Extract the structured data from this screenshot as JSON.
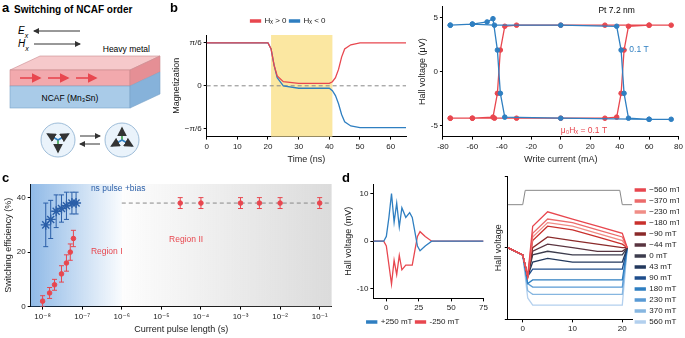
{
  "diagram": {
    "panel": "a",
    "title": "Switching of NCAF order",
    "electric_field": {
      "symbol": "E",
      "subscript": "x"
    },
    "magnetic_field": {
      "symbol": "H",
      "subscript": "x"
    },
    "layers": [
      "Heavy metal",
      "NCAF (Mn₃Sn)"
    ]
  },
  "chart_data": [
    {
      "panel": "b",
      "type": "line",
      "x_label": "Time (ns)",
      "y_label": "Magnetization",
      "x": [
        0,
        10,
        20,
        21,
        22,
        23,
        25,
        30,
        40,
        41,
        42,
        43,
        44,
        45,
        47,
        50,
        55,
        60,
        65
      ],
      "series": [
        {
          "name": "Hₓ > 0",
          "color": "#e8474f",
          "values": [
            0.5236,
            0.5236,
            0.5236,
            0.45,
            0.25,
            0.12,
            0.05,
            0.03,
            0.03,
            0.05,
            0.1,
            0.2,
            0.35,
            0.45,
            0.5,
            0.5236,
            0.5236,
            0.5236,
            0.5236
          ]
        },
        {
          "name": "Hₓ < 0",
          "color": "#2f7fc1",
          "values": [
            0.5236,
            0.5236,
            0.5236,
            0.45,
            0.25,
            0.1,
            0.0,
            -0.03,
            -0.03,
            -0.06,
            -0.12,
            -0.22,
            -0.35,
            -0.44,
            -0.49,
            -0.51,
            -0.51,
            -0.51,
            -0.51
          ]
        }
      ],
      "xlim": [
        0,
        65
      ],
      "xticks": [
        0,
        10,
        20,
        30,
        40,
        50,
        60
      ],
      "ylim": [
        -0.62,
        0.62
      ],
      "yticks": [
        {
          "value": -0.5236,
          "label": "−π/6"
        },
        0,
        {
          "value": 0.5236,
          "label": "π/6"
        }
      ],
      "shaded_x": [
        21,
        41
      ],
      "reference_y": 0,
      "grid": false,
      "legend": "top"
    },
    {
      "type": "line",
      "x_label": "Write current (mA)",
      "y_label": "Hall voltage (μV)",
      "annotations": [
        "Pt 7.2 nm"
      ],
      "series": [
        {
          "name": "− 0.1 T",
          "color": "#2f7fc1",
          "marker": "circle",
          "x": [
            -75,
            -60,
            -45,
            0,
            38,
            41,
            43,
            46,
            60,
            75,
            60,
            0,
            -38,
            -41,
            -43,
            -46,
            -50,
            -60,
            -75
          ],
          "values": [
            4.3,
            4.4,
            4.3,
            4.3,
            4.2,
            2,
            -2,
            -4.3,
            -4.4,
            -4.4,
            -4.4,
            -4.3,
            -4.2,
            -2,
            2,
            4.9,
            4.6,
            4.4,
            4.3
          ]
        },
        {
          "name": "μ₀Hₓ = 0.1 T",
          "color": "#e8474f",
          "marker": "circle",
          "x": [
            -75,
            -60,
            -45,
            -30,
            0,
            30,
            38,
            41,
            43,
            46,
            60,
            75,
            60,
            30,
            0,
            -30,
            -38,
            -41,
            -43,
            -46,
            -60,
            -75
          ],
          "values": [
            -4.3,
            -4.3,
            -4.3,
            -4.3,
            -4.3,
            -4.3,
            -4.2,
            -2,
            2,
            4.2,
            4.3,
            4.3,
            4.3,
            4.3,
            4.3,
            4.3,
            4.2,
            2,
            -2,
            -4.2,
            -4.3,
            -4.3
          ]
        }
      ],
      "xlim": [
        -80,
        80
      ],
      "xticks": [
        -80,
        -60,
        -40,
        -20,
        0,
        20,
        40,
        60,
        80
      ],
      "ylim": [
        -6,
        6
      ],
      "yticks": [
        -5,
        0,
        5
      ],
      "grid": false
    },
    {
      "panel": "c",
      "type": "scatter",
      "x_label": "Current pulse length (s)",
      "y_label": "Switching efficiency (%)",
      "log": "x",
      "series": [
        {
          "name": "Region I",
          "color": "#e8474f",
          "marker": "circle",
          "x": [
            1e-08,
            1.5e-08,
            2e-08,
            3e-08,
            4e-08,
            5e-08,
            6e-08
          ],
          "values": [
            2,
            5,
            8,
            12,
            16,
            20,
            25
          ],
          "errors": [
            2,
            2,
            2,
            3,
            3,
            3,
            3
          ]
        },
        {
          "name": "ns pulse +bias",
          "color": "#2b5fa8",
          "marker": "star",
          "x": [
            1.2e-08,
            1.6e-08,
            2.2e-08,
            3e-08,
            4e-08,
            5.5e-08,
            7e-08
          ],
          "values": [
            30,
            32,
            35,
            36,
            37,
            38,
            38
          ],
          "errors": [
            8,
            7,
            6,
            5,
            5,
            4,
            4
          ]
        },
        {
          "name": "Region II",
          "color": "#e8474f",
          "marker": "circle",
          "x": [
            3e-05,
            0.0001,
            0.001,
            0.003,
            0.01,
            0.1
          ],
          "values": [
            38,
            38,
            38,
            38,
            38,
            38
          ],
          "errors": [
            2,
            2,
            2,
            2,
            2,
            2
          ]
        }
      ],
      "xlim": [
        5e-09,
        0.2
      ],
      "xticks": [
        {
          "value": 1e-08,
          "label": "10⁻⁸"
        },
        {
          "value": 1e-07,
          "label": "10⁻⁷"
        },
        {
          "value": 1e-06,
          "label": "10⁻⁶"
        },
        {
          "value": 1e-05,
          "label": "10⁻⁵"
        },
        {
          "value": 0.0001,
          "label": "10⁻⁴"
        },
        {
          "value": 0.001,
          "label": "10⁻³"
        },
        {
          "value": 0.01,
          "label": "10⁻²"
        },
        {
          "value": 0.1,
          "label": "10⁻¹"
        }
      ],
      "ylim": [
        0,
        45
      ],
      "yticks": [
        0,
        20,
        40
      ],
      "reference_y": 38,
      "region_boundary_x": 1e-06,
      "grid": false
    },
    {
      "panel": "d",
      "type": "line",
      "y_label": "Hall voltage (mV)",
      "x": [
        -10,
        -2,
        0,
        2,
        4,
        6,
        8,
        10,
        12,
        15,
        18,
        20,
        22,
        24,
        26,
        30,
        35,
        40,
        50,
        60,
        75
      ],
      "series": [
        {
          "name": "+250 mT",
          "color": "#2f7fc1",
          "values": [
            0,
            0,
            1,
            5,
            10,
            4,
            8,
            3,
            7,
            5,
            6,
            5,
            2,
            -1,
            -2,
            -1,
            0,
            0,
            0,
            0,
            0
          ]
        },
        {
          "name": "-250 mT",
          "color": "#e8474f",
          "values": [
            0,
            0,
            -1,
            -5,
            -9,
            -4,
            -7,
            -3,
            -6,
            -5,
            -5,
            -5,
            -2,
            1,
            2,
            1,
            0,
            0,
            0,
            0,
            0
          ]
        }
      ],
      "xlim": [
        -10,
        75
      ],
      "xticks": [
        0,
        25,
        50,
        75
      ],
      "ylim": [
        -12,
        12
      ],
      "yticks": [
        -10,
        0,
        10
      ],
      "grid": false,
      "legend": "bottom"
    },
    {
      "type": "line",
      "y_label": "Hall voltage",
      "x": [
        -3,
        0,
        1,
        2,
        5,
        10,
        15,
        20,
        21
      ],
      "series": [
        {
          "name": "−560 mT",
          "color": "#e8474f",
          "values": [
            0,
            -1,
            -4,
            3,
            5,
            4,
            3,
            2,
            0
          ]
        },
        {
          "name": "−370 mT",
          "color": "#ec6b6b",
          "values": [
            0,
            -1,
            -4,
            2,
            4,
            3.5,
            2.5,
            1.5,
            0
          ]
        },
        {
          "name": "−230 mT",
          "color": "#f08d87",
          "values": [
            0,
            -1,
            -4,
            1.5,
            3.5,
            3,
            2,
            1,
            0
          ]
        },
        {
          "name": "−180 mT",
          "color": "#c9302c",
          "values": [
            0,
            -1,
            -4,
            1,
            3,
            2.5,
            1.5,
            0.5,
            0
          ]
        },
        {
          "name": "−90 mT",
          "color": "#8b2a2a",
          "values": [
            0,
            -1,
            -4,
            0,
            1.5,
            1,
            0.5,
            0,
            0
          ]
        },
        {
          "name": "−44 mT",
          "color": "#5a3540",
          "values": [
            0,
            -1,
            -4,
            -0.5,
            0.5,
            0,
            -0.5,
            -0.5,
            0
          ]
        },
        {
          "name": "0 mT",
          "color": "#3d3d4d",
          "values": [
            0,
            -1,
            -4,
            -1,
            -0.5,
            -1,
            -1,
            -1,
            0
          ]
        },
        {
          "name": "43 mT",
          "color": "#23395d",
          "values": [
            0,
            -1,
            -4,
            -2,
            -1.5,
            -2,
            -2,
            -2,
            0
          ]
        },
        {
          "name": "90 mT",
          "color": "#1f4e8c",
          "values": [
            0,
            -1,
            -4,
            -3,
            -3,
            -3,
            -3,
            -3,
            0
          ]
        },
        {
          "name": "180 mT",
          "color": "#2f7fc1",
          "values": [
            0,
            -1,
            -5,
            -4.5,
            -4.5,
            -4.5,
            -4.5,
            -4.5,
            0
          ]
        },
        {
          "name": "230 mT",
          "color": "#5a9bd5",
          "values": [
            0,
            -1,
            -5,
            -5.5,
            -5.5,
            -5.5,
            -5.5,
            -5.5,
            0
          ]
        },
        {
          "name": "370 mT",
          "color": "#86b6e0",
          "values": [
            0,
            -1,
            -6,
            -6.5,
            -6.5,
            -6.5,
            -6.5,
            -6.5,
            0
          ]
        },
        {
          "name": "560 mT",
          "color": "#b3d0ee",
          "values": [
            0,
            -1,
            -7,
            -8,
            -8,
            -8,
            -8,
            -8,
            0
          ]
        }
      ],
      "pulse": {
        "x": [
          -3,
          0,
          0.5,
          19.5,
          20,
          22
        ],
        "values": [
          6,
          6,
          8,
          8,
          6,
          6
        ],
        "color": "#888888"
      },
      "xlim": [
        -3,
        22
      ],
      "xticks": [
        0,
        10,
        20
      ],
      "ylim": [
        -10,
        10
      ],
      "yticks": [
        -10,
        0,
        10
      ],
      "tick_labels": "x",
      "grid": false,
      "legend": "right"
    }
  ]
}
